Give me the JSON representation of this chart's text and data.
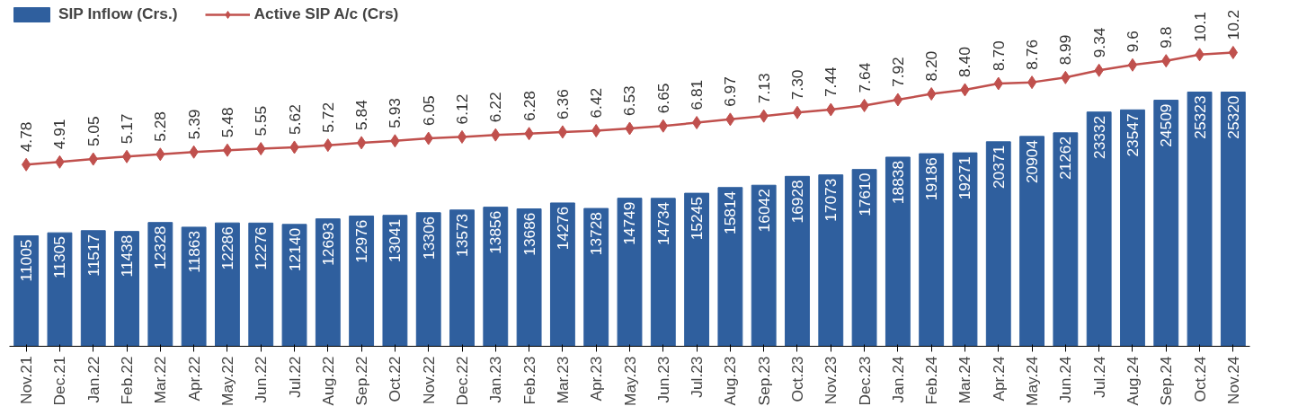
{
  "chart_data": {
    "type": "bar",
    "categories": [
      "Nov.21",
      "Dec.21",
      "Jan.22",
      "Feb.22",
      "Mar.22",
      "Apr.22",
      "May.22",
      "Jun.22",
      "Jul.22",
      "Aug.22",
      "Sep.22",
      "Oct.22",
      "Nov.22",
      "Dec.22",
      "Jan.23",
      "Feb.23",
      "Mar.23",
      "Apr.23",
      "May.23",
      "Jun.23",
      "Jul.23",
      "Aug.23",
      "Sep.23",
      "Oct.23",
      "Nov.23",
      "Dec.23",
      "Jan.24",
      "Feb.24",
      "Mar.24",
      "Apr.24",
      "May.24",
      "Jun.24",
      "Jul.24",
      "Aug.24",
      "Sep.24",
      "Oct.24",
      "Nov.24"
    ],
    "series": [
      {
        "name": "SIP Inflow (Crs.)",
        "color": "#2f5f9e",
        "values": [
          11005,
          11305,
          11517,
          11438,
          12328,
          11863,
          12286,
          12276,
          12140,
          12693,
          12976,
          13041,
          13306,
          13573,
          13856,
          13686,
          14276,
          13728,
          14749,
          14734,
          15245,
          15814,
          16042,
          16928,
          17073,
          17610,
          18838,
          19186,
          19271,
          20371,
          20904,
          21262,
          23332,
          23547,
          24509,
          25323,
          25320
        ]
      },
      {
        "name": "Active SIP A/c (Crs)",
        "type": "line",
        "axis": "y2",
        "color": "#c0504d",
        "marker": "diamond",
        "values": [
          4.78,
          4.91,
          5.05,
          5.17,
          5.28,
          5.39,
          5.48,
          5.55,
          5.62,
          5.72,
          5.84,
          5.93,
          6.05,
          6.12,
          6.22,
          6.28,
          6.36,
          6.42,
          6.53,
          6.65,
          6.81,
          6.97,
          7.13,
          7.3,
          7.44,
          7.64,
          7.92,
          8.2,
          8.4,
          8.7,
          8.76,
          8.99,
          9.34,
          9.6,
          9.8,
          10.1,
          10.2
        ],
        "value_labels": [
          "4.78",
          "4.91",
          "5.05",
          "5.17",
          "5.28",
          "5.39",
          "5.48",
          "5.55",
          "5.62",
          "5.72",
          "5.84",
          "5.93",
          "6.05",
          "6.12",
          "6.22",
          "6.28",
          "6.36",
          "6.42",
          "6.53",
          "6.65",
          "6.81",
          "6.97",
          "7.13",
          "7.30",
          "7.44",
          "7.64",
          "7.92",
          "8.20",
          "8.40",
          "8.70",
          "8.76",
          "8.99",
          "9.34",
          "9.6",
          "9.8",
          "10.1",
          "10.2"
        ]
      }
    ],
    "ylim": [
      0,
      34000
    ],
    "y2lim": [
      -4,
      12.5
    ],
    "tick_labels": "x",
    "data_labels": true,
    "legend": "top left",
    "grid": false
  }
}
